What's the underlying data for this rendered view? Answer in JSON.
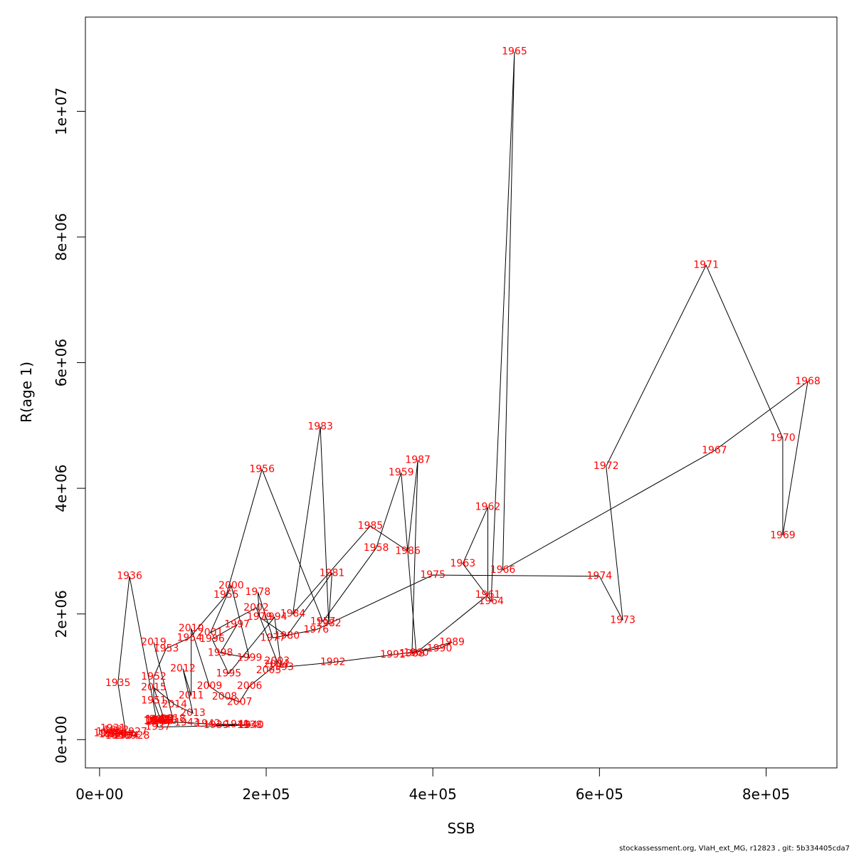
{
  "chart_data": {
    "type": "scatter",
    "xlabel": "SSB",
    "ylabel": "R(age 1)",
    "xlim": [
      -17000,
      885000
    ],
    "ylim": [
      -450000,
      11500000
    ],
    "x_ticks": [
      0,
      200000,
      400000,
      600000,
      800000
    ],
    "x_tick_labels": [
      "0e+00",
      "2e+05",
      "4e+05",
      "6e+05",
      "8e+05"
    ],
    "y_ticks": [
      0,
      2000000,
      4000000,
      6000000,
      8000000,
      10000000
    ],
    "y_tick_labels": [
      "0e+00",
      "2e+06",
      "4e+06",
      "6e+06",
      "8e+06",
      "1e+07"
    ],
    "grid": false,
    "line_color": "#000000",
    "label_color": "#ff0000",
    "points": [
      {
        "label": "1924",
        "x": 8000,
        "y": 100000
      },
      {
        "label": "1925",
        "x": 11000,
        "y": 120000
      },
      {
        "label": "1926",
        "x": 14000,
        "y": 80000
      },
      {
        "label": "1927",
        "x": 42000,
        "y": 120000
      },
      {
        "label": "1928",
        "x": 45000,
        "y": 60000
      },
      {
        "label": "1929",
        "x": 18000,
        "y": 100000
      },
      {
        "label": "1930",
        "x": 22000,
        "y": 60000
      },
      {
        "label": "1931",
        "x": 16000,
        "y": 180000
      },
      {
        "label": "1932",
        "x": 20000,
        "y": 150000
      },
      {
        "label": "1933",
        "x": 26000,
        "y": 80000
      },
      {
        "label": "1934",
        "x": 32000,
        "y": 60000
      },
      {
        "label": "1935",
        "x": 22000,
        "y": 900000
      },
      {
        "label": "1936",
        "x": 36000,
        "y": 2600000
      },
      {
        "label": "1937",
        "x": 70000,
        "y": 200000
      },
      {
        "label": "1938",
        "x": 180000,
        "y": 230000
      },
      {
        "label": "1939",
        "x": 140000,
        "y": 230000
      },
      {
        "label": "1940",
        "x": 182000,
        "y": 230000
      },
      {
        "label": "1941",
        "x": 165000,
        "y": 240000
      },
      {
        "label": "1942",
        "x": 130000,
        "y": 250000
      },
      {
        "label": "1943",
        "x": 105000,
        "y": 270000
      },
      {
        "label": "1944",
        "x": 70000,
        "y": 280000
      },
      {
        "label": "1945",
        "x": 68000,
        "y": 290000
      },
      {
        "label": "1946",
        "x": 68000,
        "y": 300000
      },
      {
        "label": "1947",
        "x": 70000,
        "y": 310000
      },
      {
        "label": "1948",
        "x": 70000,
        "y": 320000
      },
      {
        "label": "1949",
        "x": 72000,
        "y": 300000
      },
      {
        "label": "1950",
        "x": 74000,
        "y": 290000
      },
      {
        "label": "1951",
        "x": 65000,
        "y": 620000
      },
      {
        "label": "1952",
        "x": 65000,
        "y": 1000000
      },
      {
        "label": "1953",
        "x": 80000,
        "y": 1450000
      },
      {
        "label": "1954",
        "x": 108000,
        "y": 1620000
      },
      {
        "label": "1955",
        "x": 152000,
        "y": 2300000
      },
      {
        "label": "1956",
        "x": 195000,
        "y": 4300000
      },
      {
        "label": "1957",
        "x": 268000,
        "y": 1880000
      },
      {
        "label": "1958",
        "x": 332000,
        "y": 3050000
      },
      {
        "label": "1959",
        "x": 362000,
        "y": 4250000
      },
      {
        "label": "1960",
        "x": 380000,
        "y": 1380000
      },
      {
        "label": "1961",
        "x": 466000,
        "y": 2300000
      },
      {
        "label": "1962",
        "x": 466000,
        "y": 3700000
      },
      {
        "label": "1963",
        "x": 436000,
        "y": 2800000
      },
      {
        "label": "1964",
        "x": 470000,
        "y": 2200000
      },
      {
        "label": "1965",
        "x": 498000,
        "y": 10950000
      },
      {
        "label": "1966",
        "x": 484000,
        "y": 2700000
      },
      {
        "label": "1967",
        "x": 738000,
        "y": 4600000
      },
      {
        "label": "1968",
        "x": 850000,
        "y": 5700000
      },
      {
        "label": "1969",
        "x": 820000,
        "y": 3250000
      },
      {
        "label": "1970",
        "x": 820000,
        "y": 4800000
      },
      {
        "label": "1971",
        "x": 728000,
        "y": 7550000
      },
      {
        "label": "1972",
        "x": 608000,
        "y": 4350000
      },
      {
        "label": "1973",
        "x": 628000,
        "y": 1900000
      },
      {
        "label": "1974",
        "x": 600000,
        "y": 2600000
      },
      {
        "label": "1975",
        "x": 400000,
        "y": 2620000
      },
      {
        "label": "1976",
        "x": 260000,
        "y": 1750000
      },
      {
        "label": "1977",
        "x": 208000,
        "y": 1620000
      },
      {
        "label": "1978",
        "x": 190000,
        "y": 2350000
      },
      {
        "label": "1979",
        "x": 192000,
        "y": 1950000
      },
      {
        "label": "1980",
        "x": 225000,
        "y": 1650000
      },
      {
        "label": "1981",
        "x": 279000,
        "y": 2650000
      },
      {
        "label": "1982",
        "x": 275000,
        "y": 1850000
      },
      {
        "label": "1983",
        "x": 265000,
        "y": 4980000
      },
      {
        "label": "1984",
        "x": 232000,
        "y": 2000000
      },
      {
        "label": "1985",
        "x": 325000,
        "y": 3400000
      },
      {
        "label": "1986",
        "x": 370000,
        "y": 3000000
      },
      {
        "label": "1987",
        "x": 382000,
        "y": 4450000
      },
      {
        "label": "1988",
        "x": 375000,
        "y": 1370000
      },
      {
        "label": "1989",
        "x": 423000,
        "y": 1550000
      },
      {
        "label": "1990",
        "x": 408000,
        "y": 1450000
      },
      {
        "label": "1991",
        "x": 352000,
        "y": 1350000
      },
      {
        "label": "1992",
        "x": 280000,
        "y": 1230000
      },
      {
        "label": "1993",
        "x": 218000,
        "y": 1150000
      },
      {
        "label": "1994",
        "x": 210000,
        "y": 1950000
      },
      {
        "label": "1995",
        "x": 155000,
        "y": 1050000
      },
      {
        "label": "1996",
        "x": 135000,
        "y": 1600000
      },
      {
        "label": "1997",
        "x": 165000,
        "y": 1830000
      },
      {
        "label": "1998",
        "x": 145000,
        "y": 1380000
      },
      {
        "label": "1999",
        "x": 180000,
        "y": 1300000
      },
      {
        "label": "2000",
        "x": 158000,
        "y": 2450000
      },
      {
        "label": "2001",
        "x": 133000,
        "y": 1700000
      },
      {
        "label": "2002",
        "x": 188000,
        "y": 2100000
      },
      {
        "label": "2003",
        "x": 213000,
        "y": 1250000
      },
      {
        "label": "2004",
        "x": 212000,
        "y": 1200000
      },
      {
        "label": "2005",
        "x": 203000,
        "y": 1100000
      },
      {
        "label": "2006",
        "x": 180000,
        "y": 850000
      },
      {
        "label": "2007",
        "x": 168000,
        "y": 600000
      },
      {
        "label": "2008",
        "x": 150000,
        "y": 680000
      },
      {
        "label": "2009",
        "x": 132000,
        "y": 850000
      },
      {
        "label": "2010",
        "x": 110000,
        "y": 1770000
      },
      {
        "label": "2011",
        "x": 110000,
        "y": 700000
      },
      {
        "label": "2012",
        "x": 100000,
        "y": 1130000
      },
      {
        "label": "2013",
        "x": 112000,
        "y": 420000
      },
      {
        "label": "2014",
        "x": 90000,
        "y": 560000
      },
      {
        "label": "2015",
        "x": 65000,
        "y": 830000
      },
      {
        "label": "2016",
        "x": 78000,
        "y": 300000
      },
      {
        "label": "2017",
        "x": 75000,
        "y": 320000
      },
      {
        "label": "2018",
        "x": 88000,
        "y": 330000
      },
      {
        "label": "2019",
        "x": 65000,
        "y": 1550000
      }
    ]
  },
  "footer": "stockassessment.org, VIaH_ext_MG, r12823 , git: 5b334405cda7"
}
